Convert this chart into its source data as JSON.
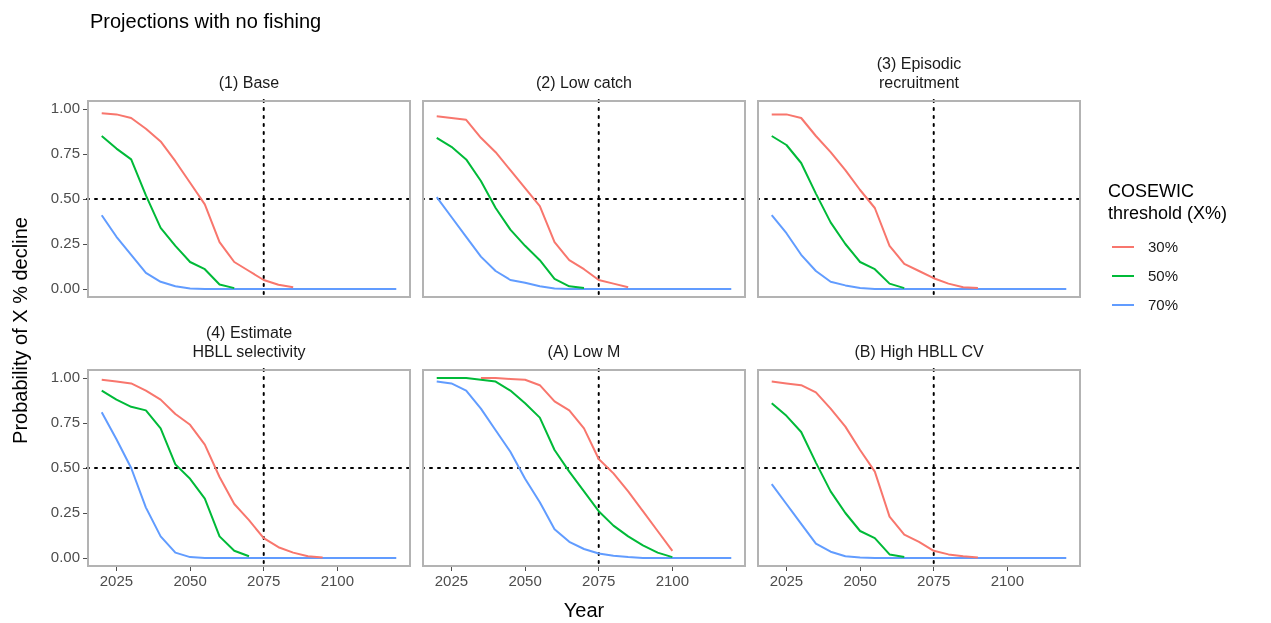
{
  "chart_data": [
    {
      "type": "line",
      "title": "(1) Base",
      "annotations": [
        "Projections with no fishing"
      ],
      "ylabel": "Probability of X % decline",
      "x": [
        2020,
        2025,
        2030,
        2035,
        2040,
        2045,
        2050,
        2055,
        2060,
        2065,
        2070,
        2075,
        2080,
        2085,
        2090,
        2095,
        2100,
        2105,
        2110,
        2115,
        2120
      ],
      "xlim": [
        2015,
        2125
      ],
      "ylim": [
        -0.05,
        1.05
      ],
      "yticks": [
        {
          "value": 0,
          "label": "0.00"
        },
        {
          "value": 0.25,
          "label": "0.25"
        },
        {
          "value": 0.5,
          "label": "0.50"
        },
        {
          "value": 0.75,
          "label": "0.75"
        },
        {
          "value": 1,
          "label": "1.00"
        }
      ],
      "tick_labels": "y",
      "ref_lines": [
        {
          "axis": "y",
          "value": 0.5,
          "color": "#000000",
          "line_style": "dotted"
        },
        {
          "axis": "x",
          "value": 2075,
          "color": "#000000",
          "line_style": "dotted"
        }
      ],
      "series": [
        {
          "color": "#f8766d",
          "values": [
            0.976,
            0.97,
            0.95,
            0.89,
            0.82,
            0.71,
            0.59,
            0.47,
            0.26,
            0.15,
            0.1,
            0.05,
            0.024,
            0.01,
            null,
            null,
            null,
            null,
            null,
            null,
            null
          ]
        },
        {
          "color": "#00ba38",
          "values": [
            0.85,
            0.78,
            0.72,
            0.52,
            0.34,
            0.24,
            0.15,
            0.11,
            0.025,
            0.005,
            null,
            null,
            null,
            null,
            null,
            null,
            null,
            null,
            null,
            null,
            null
          ]
        },
        {
          "color": "#619cff",
          "values": [
            0.41,
            0.29,
            0.19,
            0.09,
            0.04,
            0.015,
            0.003,
            0,
            0,
            0,
            0,
            0,
            0,
            0,
            0,
            0,
            0,
            0,
            0,
            0,
            0
          ]
        }
      ]
    },
    {
      "type": "line",
      "title": "(2) Low catch",
      "x": [
        2020,
        2025,
        2030,
        2035,
        2040,
        2045,
        2050,
        2055,
        2060,
        2065,
        2070,
        2075,
        2080,
        2085,
        2090,
        2095,
        2100,
        2105,
        2110,
        2115,
        2120
      ],
      "xlim": [
        2015,
        2125
      ],
      "ylim": [
        -0.05,
        1.05
      ],
      "tick_labels": false,
      "ref_lines": [
        {
          "axis": "y",
          "value": 0.5,
          "color": "#000000",
          "line_style": "dotted"
        },
        {
          "axis": "x",
          "value": 2075,
          "color": "#000000",
          "line_style": "dotted"
        }
      ],
      "series": [
        {
          "color": "#f8766d",
          "values": [
            0.96,
            0.95,
            0.94,
            0.84,
            0.76,
            0.66,
            0.56,
            0.46,
            0.26,
            0.16,
            0.11,
            0.05,
            0.03,
            0.01,
            null,
            null,
            null,
            null,
            null,
            null,
            null
          ]
        },
        {
          "color": "#00ba38",
          "values": [
            0.84,
            0.79,
            0.72,
            0.6,
            0.45,
            0.33,
            0.24,
            0.16,
            0.056,
            0.015,
            0.005,
            null,
            null,
            null,
            null,
            null,
            null,
            null,
            null,
            null,
            null
          ]
        },
        {
          "color": "#619cff",
          "values": [
            0.51,
            0.4,
            0.29,
            0.18,
            0.1,
            0.05,
            0.035,
            0.015,
            0.003,
            0,
            0,
            0,
            0,
            0,
            0,
            0,
            0,
            0,
            0,
            0,
            0
          ]
        }
      ]
    },
    {
      "type": "line",
      "title": "(3) Episodic recruitment",
      "legend_title": "COSEWIC threshold (X%)",
      "legend": "right",
      "x": [
        2020,
        2025,
        2030,
        2035,
        2040,
        2045,
        2050,
        2055,
        2060,
        2065,
        2070,
        2075,
        2080,
        2085,
        2090,
        2095,
        2100,
        2105,
        2110,
        2115,
        2120
      ],
      "xlim": [
        2015,
        2125
      ],
      "ylim": [
        -0.05,
        1.05
      ],
      "tick_labels": false,
      "ref_lines": [
        {
          "axis": "y",
          "value": 0.5,
          "color": "#000000",
          "line_style": "dotted"
        },
        {
          "axis": "x",
          "value": 2075,
          "color": "#000000",
          "line_style": "dotted"
        }
      ],
      "series": [
        {
          "name": "30%",
          "color": "#f8766d",
          "values": [
            0.97,
            0.97,
            0.95,
            0.85,
            0.76,
            0.66,
            0.55,
            0.45,
            0.24,
            0.14,
            0.1,
            0.06,
            0.03,
            0.01,
            0.005,
            null,
            null,
            null,
            null,
            null,
            null
          ]
        },
        {
          "name": "50%",
          "color": "#00ba38",
          "values": [
            0.85,
            0.8,
            0.7,
            0.53,
            0.37,
            0.25,
            0.15,
            0.11,
            0.03,
            0.005,
            null,
            null,
            null,
            null,
            null,
            null,
            null,
            null,
            null,
            null,
            null
          ]
        },
        {
          "name": "70%",
          "color": "#619cff",
          "values": [
            0.41,
            0.31,
            0.19,
            0.1,
            0.04,
            0.02,
            0.005,
            0,
            0,
            0,
            0,
            0,
            0,
            0,
            0,
            0,
            0,
            0,
            0,
            0,
            0
          ]
        }
      ]
    },
    {
      "type": "line",
      "title": "(4) Estimate HBLL selectivity",
      "x": [
        2020,
        2025,
        2030,
        2035,
        2040,
        2045,
        2050,
        2055,
        2060,
        2065,
        2070,
        2075,
        2080,
        2085,
        2090,
        2095,
        2100,
        2105,
        2110,
        2115,
        2120
      ],
      "xlim": [
        2015,
        2125
      ],
      "xticks": [
        2025,
        2050,
        2075,
        2100
      ],
      "ylim": [
        -0.05,
        1.05
      ],
      "yticks": [
        {
          "value": 0,
          "label": "0.00"
        },
        {
          "value": 0.25,
          "label": "0.25"
        },
        {
          "value": 0.5,
          "label": "0.50"
        },
        {
          "value": 0.75,
          "label": "0.75"
        },
        {
          "value": 1,
          "label": "1.00"
        }
      ],
      "ref_lines": [
        {
          "axis": "y",
          "value": 0.5,
          "color": "#000000",
          "line_style": "dotted"
        },
        {
          "axis": "x",
          "value": 2075,
          "color": "#000000",
          "line_style": "dotted"
        }
      ],
      "series": [
        {
          "color": "#f8766d",
          "values": [
            0.99,
            0.98,
            0.97,
            0.93,
            0.88,
            0.8,
            0.74,
            0.63,
            0.45,
            0.3,
            0.21,
            0.11,
            0.06,
            0.03,
            0.01,
            0.003,
            null,
            null,
            null,
            null,
            null
          ]
        },
        {
          "color": "#00ba38",
          "values": [
            0.93,
            0.88,
            0.84,
            0.82,
            0.72,
            0.52,
            0.44,
            0.33,
            0.12,
            0.04,
            0.01,
            null,
            null,
            null,
            null,
            null,
            null,
            null,
            null,
            null,
            null
          ]
        },
        {
          "color": "#619cff",
          "values": [
            0.81,
            0.66,
            0.5,
            0.28,
            0.12,
            0.03,
            0.005,
            0,
            0,
            0,
            0,
            0,
            0,
            0,
            0,
            0,
            0,
            0,
            0,
            0,
            0
          ]
        }
      ]
    },
    {
      "type": "line",
      "title": "(A) Low M",
      "xlabel": "Year",
      "x": [
        2020,
        2025,
        2030,
        2035,
        2040,
        2045,
        2050,
        2055,
        2060,
        2065,
        2070,
        2075,
        2080,
        2085,
        2090,
        2095,
        2100,
        2105,
        2110,
        2115,
        2120
      ],
      "xlim": [
        2015,
        2125
      ],
      "xticks": [
        2025,
        2050,
        2075,
        2100
      ],
      "ylim": [
        -0.05,
        1.05
      ],
      "tick_labels": "x",
      "ref_lines": [
        {
          "axis": "y",
          "value": 0.5,
          "color": "#000000",
          "line_style": "dotted"
        },
        {
          "axis": "x",
          "value": 2075,
          "color": "#000000",
          "line_style": "dotted"
        }
      ],
      "series": [
        {
          "color": "#f8766d",
          "values": [
            null,
            null,
            null,
            1,
            1,
            0.995,
            0.99,
            0.96,
            0.87,
            0.82,
            0.72,
            0.55,
            0.47,
            0.37,
            0.26,
            0.15,
            0.04,
            null,
            null,
            null,
            null
          ]
        },
        {
          "color": "#00ba38",
          "values": [
            1,
            1,
            1,
            0.99,
            0.98,
            0.93,
            0.86,
            0.78,
            0.6,
            0.48,
            0.37,
            0.26,
            0.18,
            0.12,
            0.07,
            0.03,
            0.005,
            null,
            null,
            null,
            null
          ]
        },
        {
          "color": "#619cff",
          "values": [
            0.98,
            0.97,
            0.93,
            0.83,
            0.71,
            0.59,
            0.44,
            0.31,
            0.16,
            0.09,
            0.05,
            0.025,
            0.012,
            0.005,
            0,
            0,
            0,
            0,
            0,
            0,
            0
          ]
        }
      ]
    },
    {
      "type": "line",
      "title": "(B) High HBLL CV",
      "x": [
        2020,
        2025,
        2030,
        2035,
        2040,
        2045,
        2050,
        2055,
        2060,
        2065,
        2070,
        2075,
        2080,
        2085,
        2090,
        2095,
        2100,
        2105,
        2110,
        2115,
        2120
      ],
      "xlim": [
        2015,
        2125
      ],
      "xticks": [
        2025,
        2050,
        2075,
        2100
      ],
      "ylim": [
        -0.05,
        1.05
      ],
      "tick_labels": "x",
      "ref_lines": [
        {
          "axis": "y",
          "value": 0.5,
          "color": "#000000",
          "line_style": "dotted"
        },
        {
          "axis": "x",
          "value": 2075,
          "color": "#000000",
          "line_style": "dotted"
        }
      ],
      "series": [
        {
          "color": "#f8766d",
          "values": [
            0.98,
            0.97,
            0.96,
            0.92,
            0.83,
            0.73,
            0.6,
            0.48,
            0.23,
            0.13,
            0.09,
            0.04,
            0.02,
            0.01,
            0.003,
            null,
            null,
            null,
            null,
            null,
            null
          ]
        },
        {
          "color": "#00ba38",
          "values": [
            0.86,
            0.79,
            0.7,
            0.53,
            0.37,
            0.25,
            0.15,
            0.11,
            0.02,
            0.005,
            null,
            null,
            null,
            null,
            null,
            null,
            null,
            null,
            null,
            null,
            null
          ]
        },
        {
          "color": "#619cff",
          "values": [
            0.41,
            0.3,
            0.19,
            0.08,
            0.035,
            0.01,
            0.003,
            0,
            0,
            0,
            0,
            0,
            0,
            0,
            0,
            0,
            0,
            0,
            0,
            0,
            0
          ]
        }
      ]
    }
  ]
}
